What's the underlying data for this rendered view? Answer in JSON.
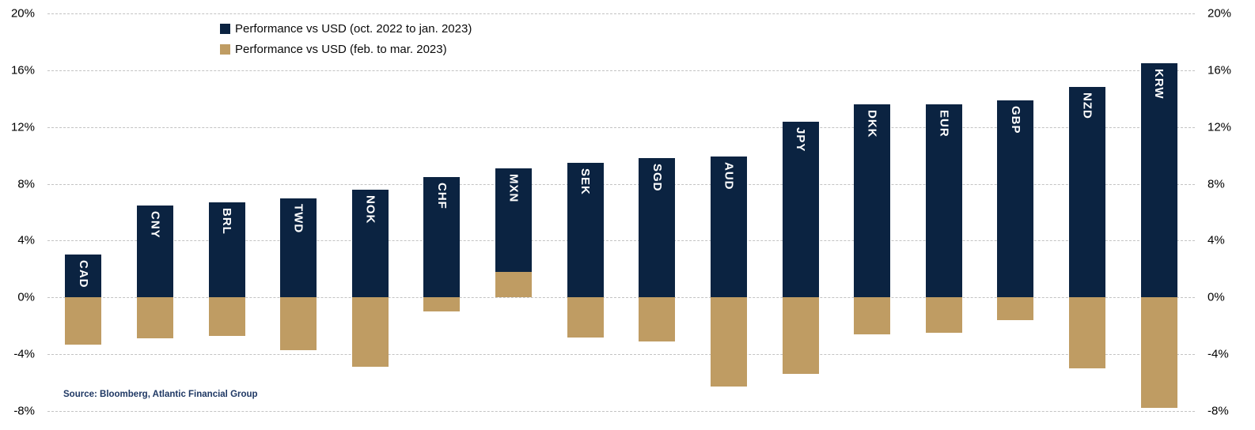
{
  "source": "Source: Bloomberg, Atlantic Financial Group",
  "chart_data": {
    "type": "bar",
    "stacked": true,
    "orientation": "vertical",
    "title": "",
    "xlabel": "",
    "ylabel": "",
    "categories": [
      "CAD",
      "CNY",
      "BRL",
      "TWD",
      "NOK",
      "CHF",
      "MXN",
      "SEK",
      "SGD",
      "AUD",
      "JPY",
      "DKK",
      "EUR",
      "GBP",
      "NZD",
      "KRW"
    ],
    "series": [
      {
        "name": "Performance vs USD (oct. 2022 to jan. 2023)",
        "color": "#0b2341",
        "values": [
          3.0,
          6.5,
          6.7,
          7.0,
          7.6,
          8.5,
          7.3,
          9.5,
          9.8,
          9.9,
          12.4,
          13.6,
          13.6,
          13.9,
          14.8,
          16.5
        ]
      },
      {
        "name": "Performance vs USD (feb. to mar. 2023)",
        "color": "#bf9c63",
        "values": [
          -3.3,
          -2.9,
          -2.7,
          -3.7,
          -4.9,
          -1.0,
          1.8,
          -2.8,
          -3.1,
          -6.3,
          -5.4,
          -2.6,
          -2.5,
          -1.6,
          -5.0,
          -7.8
        ]
      }
    ],
    "ylim": [
      -8,
      20
    ],
    "ytick_values": [
      20,
      16,
      12,
      8,
      4,
      0,
      -4,
      -8
    ],
    "ytick_labels": [
      "20%",
      "16%",
      "12%",
      "8%",
      "4%",
      "0%",
      "-4%",
      "-8%"
    ],
    "y_axis_sides": [
      "left",
      "right"
    ],
    "grid": "horizontal-dashed",
    "legend_position": "top-left-inside"
  }
}
